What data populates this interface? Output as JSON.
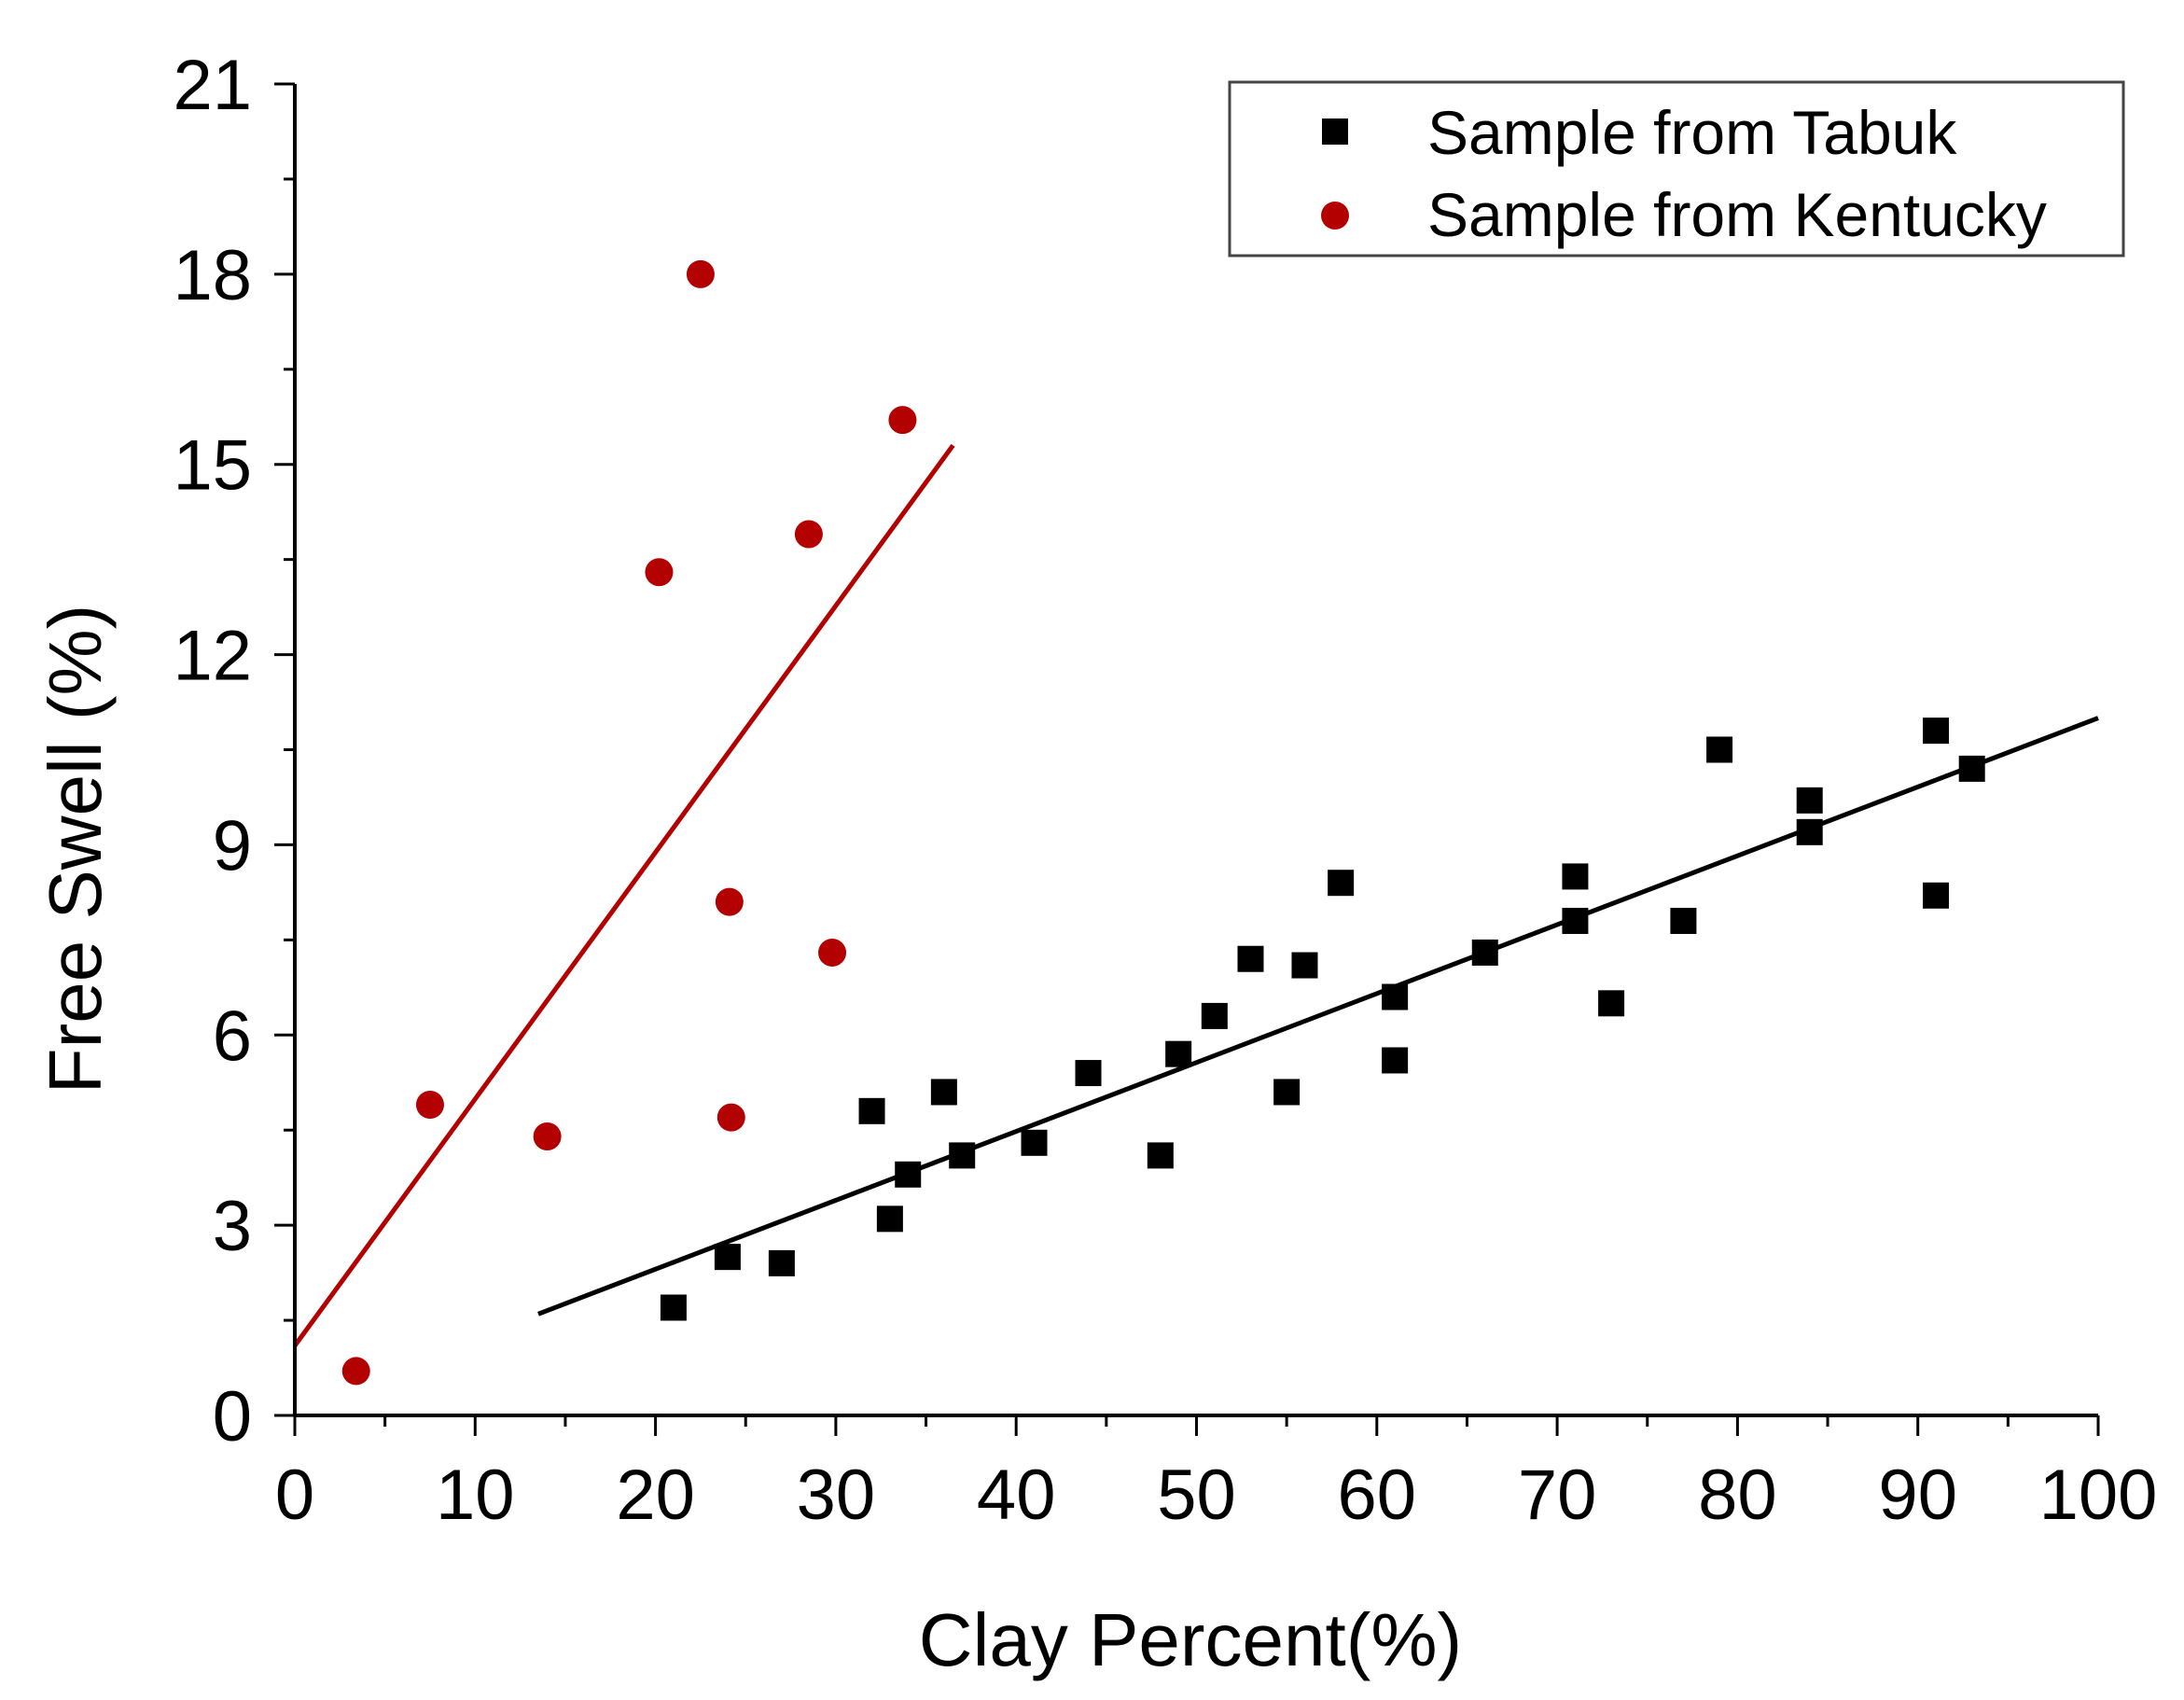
{
  "chart_data": {
    "type": "scatter",
    "title": "",
    "xlabel": "Clay Percent(%)",
    "ylabel": "Free Swell (%)",
    "xlim": [
      0,
      100
    ],
    "ylim": [
      0,
      21
    ],
    "xticks": [
      0,
      10,
      20,
      30,
      40,
      50,
      60,
      70,
      80,
      90,
      100
    ],
    "yticks": [
      0,
      3,
      6,
      9,
      12,
      15,
      18,
      21
    ],
    "grid": false,
    "legend_position": "top-right",
    "series": [
      {
        "name": "Sample from Tabuk",
        "marker": "square",
        "color": "#000000",
        "points": [
          [
            21,
            1.7
          ],
          [
            24,
            2.5
          ],
          [
            27,
            2.4
          ],
          [
            32,
            4.8
          ],
          [
            33,
            3.1
          ],
          [
            34,
            3.8
          ],
          [
            36,
            5.1
          ],
          [
            37,
            4.1
          ],
          [
            41,
            4.3
          ],
          [
            44,
            5.4
          ],
          [
            48,
            4.1
          ],
          [
            49,
            5.7
          ],
          [
            51,
            6.3
          ],
          [
            53,
            7.2
          ],
          [
            55,
            5.1
          ],
          [
            56,
            7.1
          ],
          [
            58,
            8.4
          ],
          [
            61,
            6.6
          ],
          [
            61,
            5.6
          ],
          [
            66,
            7.3
          ],
          [
            71,
            8.5
          ],
          [
            71,
            7.8
          ],
          [
            73,
            6.5
          ],
          [
            77,
            7.8
          ],
          [
            79,
            10.5
          ],
          [
            84,
            9.7
          ],
          [
            84,
            9.2
          ],
          [
            91,
            10.8
          ],
          [
            91,
            8.2
          ],
          [
            93,
            10.2
          ]
        ],
        "fit_line": {
          "x": [
            13.5,
            100
          ],
          "y": [
            1.6,
            11.0
          ]
        }
      },
      {
        "name": "Sample from Kentucky",
        "marker": "circle",
        "color": "#b30000",
        "points": [
          [
            3.4,
            0.7
          ],
          [
            7.5,
            4.9
          ],
          [
            14,
            4.4
          ],
          [
            20.2,
            13.3
          ],
          [
            22.5,
            18.0
          ],
          [
            24.1,
            8.1
          ],
          [
            24.2,
            4.7
          ],
          [
            28.5,
            13.9
          ],
          [
            29.8,
            7.3
          ],
          [
            33.7,
            15.7
          ]
        ],
        "fit_line": {
          "x": [
            0,
            36.5
          ],
          "y": [
            1.1,
            15.3
          ]
        }
      }
    ]
  }
}
